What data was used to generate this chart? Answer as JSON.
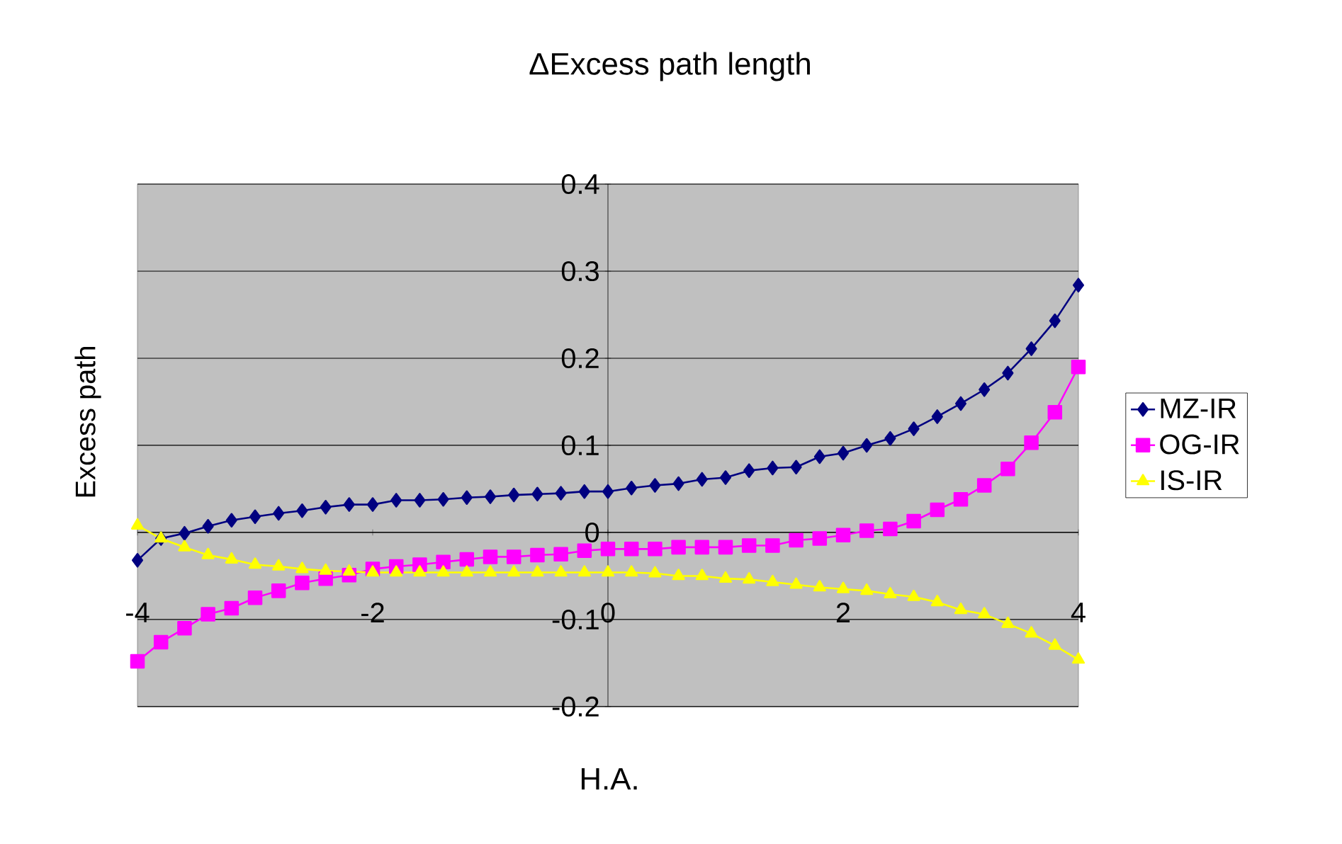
{
  "chart_data": {
    "type": "line",
    "title": "ΔExcess path length",
    "xlabel": "H.A.",
    "ylabel": "Excess path",
    "x": [
      -4,
      -3.8,
      -3.6,
      -3.4,
      -3.2,
      -3,
      -2.8,
      -2.6,
      -2.4,
      -2.2,
      -2,
      -1.8,
      -1.6,
      -1.4,
      -1.2,
      -1,
      -0.8,
      -0.6,
      -0.4,
      -0.2,
      0,
      0.2,
      0.4,
      0.6,
      0.8,
      1,
      1.2,
      1.4,
      1.6,
      1.8,
      2,
      2.2,
      2.4,
      2.6,
      2.8,
      3,
      3.2,
      3.4,
      3.6,
      3.8,
      4
    ],
    "series": [
      {
        "name": "MZ-IR",
        "color": "#000080",
        "marker": "diamond",
        "values": [
          -0.032,
          -0.007,
          -0.001,
          0.007,
          0.014,
          0.018,
          0.022,
          0.025,
          0.029,
          0.032,
          0.032,
          0.037,
          0.037,
          0.038,
          0.04,
          0.041,
          0.043,
          0.044,
          0.045,
          0.047,
          0.047,
          0.051,
          0.054,
          0.056,
          0.061,
          0.063,
          0.071,
          0.074,
          0.075,
          0.087,
          0.091,
          0.1,
          0.108,
          0.119,
          0.133,
          0.148,
          0.164,
          0.183,
          0.211,
          0.243,
          0.284
        ]
      },
      {
        "name": "OG-IR",
        "color": "#ff00ff",
        "marker": "square",
        "values": [
          -0.148,
          -0.126,
          -0.11,
          -0.094,
          -0.087,
          -0.075,
          -0.067,
          -0.058,
          -0.053,
          -0.049,
          -0.042,
          -0.039,
          -0.037,
          -0.034,
          -0.031,
          -0.028,
          -0.028,
          -0.026,
          -0.025,
          -0.021,
          -0.019,
          -0.019,
          -0.019,
          -0.017,
          -0.017,
          -0.017,
          -0.015,
          -0.015,
          -0.009,
          -0.007,
          -0.003,
          0.002,
          0.004,
          0.013,
          0.026,
          0.038,
          0.054,
          0.073,
          0.103,
          0.138,
          0.19
        ]
      },
      {
        "name": "IS-IR",
        "color": "#ffff00",
        "marker": "triangle",
        "values": [
          0.008,
          -0.007,
          -0.017,
          -0.026,
          -0.031,
          -0.037,
          -0.039,
          -0.042,
          -0.044,
          -0.045,
          -0.046,
          -0.046,
          -0.046,
          -0.046,
          -0.046,
          -0.046,
          -0.046,
          -0.046,
          -0.046,
          -0.046,
          -0.046,
          -0.046,
          -0.047,
          -0.05,
          -0.05,
          -0.053,
          -0.054,
          -0.057,
          -0.06,
          -0.063,
          -0.065,
          -0.067,
          -0.071,
          -0.074,
          -0.08,
          -0.089,
          -0.094,
          -0.105,
          -0.116,
          -0.13,
          -0.146
        ]
      }
    ],
    "xlim": [
      -4,
      4
    ],
    "ylim": [
      -0.2,
      0.4
    ],
    "xticks": [
      -4,
      -2,
      0,
      2,
      4
    ],
    "yticks": [
      -0.2,
      -0.1,
      0,
      0.1,
      0.2,
      0.3,
      0.4
    ],
    "grid": "y",
    "legend": "right",
    "line_style": "solid"
  }
}
